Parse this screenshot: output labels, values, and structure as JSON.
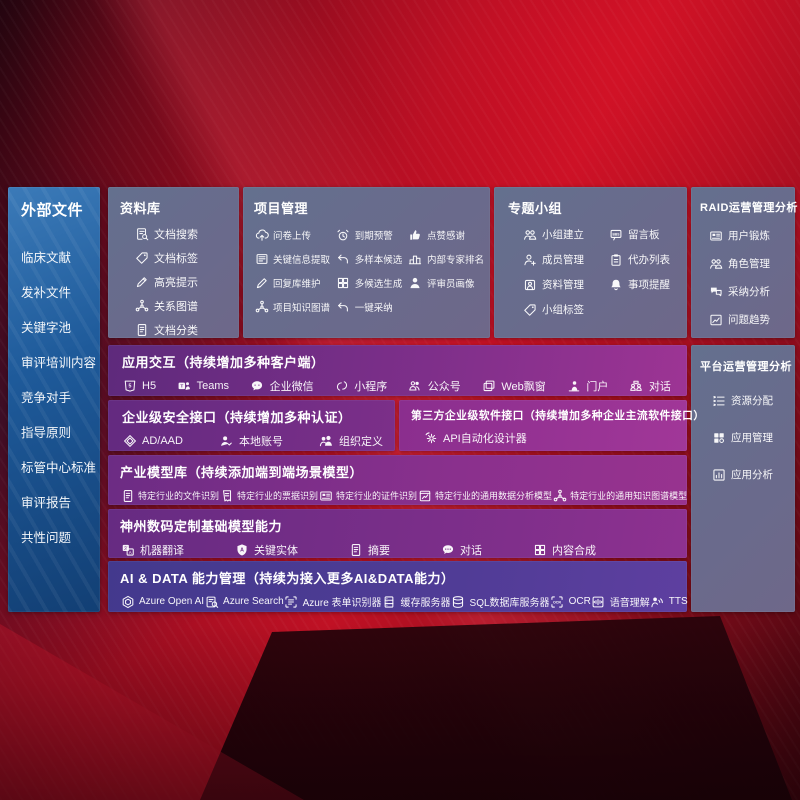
{
  "colors": {
    "background_red": "#b01124",
    "sidebar_blue": "#1e5a9a",
    "panel_slate": "#66708c",
    "band_purple": "#7c2f8a",
    "band_magenta": "#9a3394",
    "band_indigo": "#45398e"
  },
  "sidebar": {
    "title": "外部文件",
    "items": [
      {
        "label": "临床文献"
      },
      {
        "label": "发补文件"
      },
      {
        "label": "关键字池"
      },
      {
        "label": "审评培训内容"
      },
      {
        "label": "竞争对手"
      },
      {
        "label": "指导原则"
      },
      {
        "label": "标管中心标准"
      },
      {
        "label": "审评报告"
      },
      {
        "label": "共性问题"
      }
    ]
  },
  "library": {
    "title": "资料库",
    "items": [
      {
        "label": "文档搜索",
        "icon": "doc-search"
      },
      {
        "label": "文档标签",
        "icon": "tag"
      },
      {
        "label": "高亮提示",
        "icon": "highlight-pen"
      },
      {
        "label": "关系图谱",
        "icon": "knowledge-graph"
      },
      {
        "label": "文档分类",
        "icon": "document"
      }
    ]
  },
  "project": {
    "title": "项目管理",
    "items": [
      {
        "label": "问卷上传",
        "icon": "cloud-upload"
      },
      {
        "label": "到期预警",
        "icon": "alarm"
      },
      {
        "label": "点赞感谢",
        "icon": "thumbs-up"
      },
      {
        "label": "关键信息提取",
        "icon": "doc-extract"
      },
      {
        "label": "多样本候选",
        "icon": "reply-arrow"
      },
      {
        "label": "内部专家排名",
        "icon": "ranking-podium"
      },
      {
        "label": "回复库维护",
        "icon": "edit-pen"
      },
      {
        "label": "多候选生成",
        "icon": "puzzle"
      },
      {
        "label": "评审员画像",
        "icon": "person"
      },
      {
        "label": "项目知识图谱",
        "icon": "knowledge-graph"
      },
      {
        "label": "一键采纳",
        "icon": "adopt-arrow"
      }
    ]
  },
  "group": {
    "title": "专题小组",
    "items": [
      {
        "label": "小组建立",
        "icon": "people"
      },
      {
        "label": "留言板",
        "icon": "bbs-board"
      },
      {
        "label": "成员管理",
        "icon": "member-add"
      },
      {
        "label": "代办列表",
        "icon": "todo-clipboard"
      },
      {
        "label": "资料管理",
        "icon": "data-album"
      },
      {
        "label": "事项提醒",
        "icon": "bell"
      },
      {
        "label": "小组标签",
        "icon": "tag"
      }
    ]
  },
  "raid": {
    "title": "RAID运营管理分析",
    "items": [
      {
        "label": "用户锻炼",
        "icon": "id-card"
      },
      {
        "label": "角色管理",
        "icon": "people"
      },
      {
        "label": "采纳分析",
        "icon": "qa-bubbles"
      },
      {
        "label": "问题趋势",
        "icon": "trend-chart"
      }
    ]
  },
  "platform": {
    "title": "平台运营管理分析",
    "items": [
      {
        "label": "资源分配",
        "icon": "allocation-list"
      },
      {
        "label": "应用管理",
        "icon": "app-grid"
      },
      {
        "label": "应用分析",
        "icon": "app-analysis"
      }
    ]
  },
  "interaction": {
    "title": "应用交互（持续增加多种客户端）",
    "items": [
      {
        "label": "H5",
        "icon": "h5"
      },
      {
        "label": "Teams",
        "icon": "teams"
      },
      {
        "label": "企业微信",
        "icon": "wechat-work"
      },
      {
        "label": "小程序",
        "icon": "mini-program"
      },
      {
        "label": "公众号",
        "icon": "official-account"
      },
      {
        "label": "Web飘窗",
        "icon": "web-window"
      },
      {
        "label": "门户",
        "icon": "portal-user"
      },
      {
        "label": "对话",
        "icon": "dialog"
      }
    ]
  },
  "security": {
    "title": "企业级安全接口（持续增加多种认证）",
    "items": [
      {
        "label": "AD/AAD",
        "icon": "ad-diamond"
      },
      {
        "label": "本地账号",
        "icon": "local-account"
      },
      {
        "label": "组织定义",
        "icon": "org-people"
      }
    ]
  },
  "thirdparty": {
    "title": "第三方企业级软件接口（持续增加多种企业主流软件接口）",
    "items": [
      {
        "label": "API自动化设计器",
        "icon": "api-gear"
      }
    ]
  },
  "industry": {
    "title": "产业模型库（持续添加端到端场景模型）",
    "items": [
      {
        "label": "特定行业的文件识别",
        "icon": "document"
      },
      {
        "label": "特定行业的票据识别",
        "icon": "receipt"
      },
      {
        "label": "特定行业的证件识别",
        "icon": "id-card"
      },
      {
        "label": "特定行业的通用数据分析模型",
        "icon": "data-chart"
      },
      {
        "label": "特定行业的通用知识图谱模型",
        "icon": "knowledge-graph"
      }
    ]
  },
  "basemodel": {
    "title": "神州数码定制基础模型能力",
    "items": [
      {
        "label": "机器翻译",
        "icon": "translate"
      },
      {
        "label": "关键实体",
        "icon": "entity-shield"
      },
      {
        "label": "摘要",
        "icon": "document"
      },
      {
        "label": "对话",
        "icon": "chat-bubble"
      },
      {
        "label": "内容合成",
        "icon": "puzzle"
      }
    ]
  },
  "aidata": {
    "title": "AI & DATA 能力管理（持续为接入更多AI&DATA能力）",
    "items": [
      {
        "label": "Azure Open AI",
        "icon": "openai"
      },
      {
        "label": "Azure Search",
        "icon": "azure-search"
      },
      {
        "label": "Azure 表单识别器",
        "icon": "form-recognizer"
      },
      {
        "label": "缓存服务器",
        "icon": "cache-server"
      },
      {
        "label": "SQL数据库服务器",
        "icon": "sql-database"
      },
      {
        "label": "OCR",
        "icon": "ocr"
      },
      {
        "label": "语音理解",
        "icon": "speech"
      },
      {
        "label": "TTS",
        "icon": "tts"
      }
    ]
  }
}
